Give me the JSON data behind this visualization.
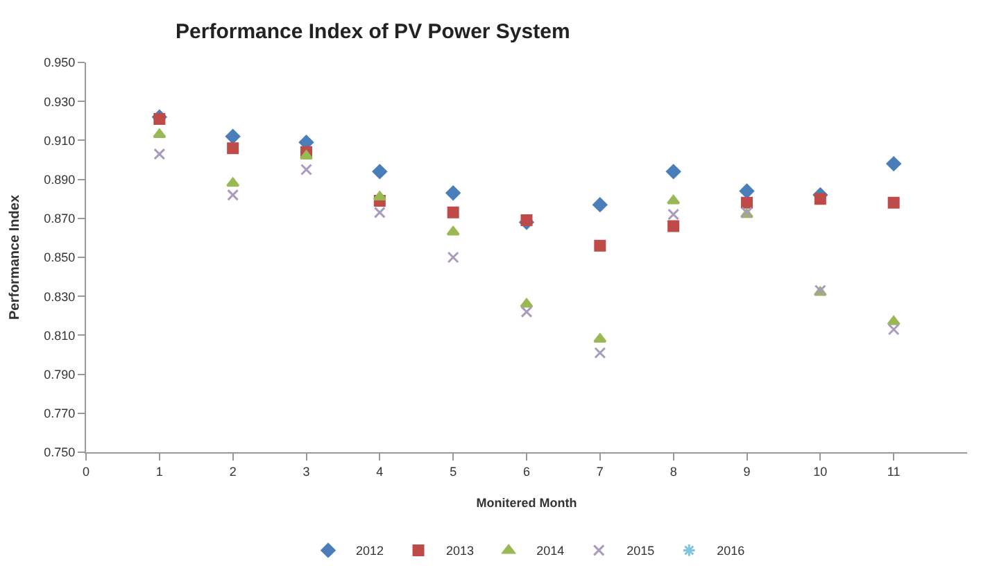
{
  "chart_data": {
    "type": "scatter",
    "title": "Performance Index of PV Power System",
    "xlabel": "Monitered Month",
    "ylabel": "Performance Index",
    "x": [
      1,
      2,
      3,
      4,
      5,
      6,
      7,
      8,
      9,
      10,
      11
    ],
    "xlim": [
      0,
      12
    ],
    "xticks": [
      0,
      1,
      2,
      3,
      4,
      5,
      6,
      7,
      8,
      9,
      10,
      11
    ],
    "ylim": [
      0.75,
      0.95
    ],
    "yticks": [
      {
        "value": 0.75,
        "label": "0.750"
      },
      {
        "value": 0.77,
        "label": "0.770"
      },
      {
        "value": 0.79,
        "label": "0.790"
      },
      {
        "value": 0.81,
        "label": "0.810"
      },
      {
        "value": 0.83,
        "label": "0.830"
      },
      {
        "value": 0.85,
        "label": "0.850"
      },
      {
        "value": 0.87,
        "label": "0.870"
      },
      {
        "value": 0.89,
        "label": "0.890"
      },
      {
        "value": 0.91,
        "label": "0.910"
      },
      {
        "value": 0.93,
        "label": "0.930"
      },
      {
        "value": 0.95,
        "label": "0.950"
      }
    ],
    "legend": "bottom",
    "series": [
      {
        "name": "2012",
        "color": "#4a7ebb",
        "marker": "diamond",
        "values": [
          0.922,
          0.912,
          0.909,
          0.894,
          0.883,
          0.868,
          0.877,
          0.894,
          0.884,
          0.882,
          0.898
        ]
      },
      {
        "name": "2013",
        "color": "#be4b48",
        "marker": "square",
        "values": [
          0.921,
          0.906,
          0.904,
          0.879,
          0.873,
          0.869,
          0.856,
          0.866,
          0.878,
          0.88,
          0.878
        ]
      },
      {
        "name": "2014",
        "color": "#98b954",
        "marker": "triangle",
        "values": [
          0.913,
          0.888,
          0.902,
          0.881,
          0.863,
          0.826,
          0.808,
          0.879,
          0.872,
          0.832,
          0.817
        ]
      },
      {
        "name": "2015",
        "color": "#a99bbd",
        "marker": "cross",
        "values": [
          0.903,
          0.882,
          0.895,
          0.873,
          0.85,
          0.822,
          0.801,
          0.872,
          0.873,
          0.833,
          0.813
        ]
      },
      {
        "name": "2016",
        "color": "#7fc5e0",
        "marker": "star",
        "values": [
          null,
          null,
          null,
          null,
          null,
          null,
          null,
          null,
          null,
          null,
          null
        ]
      }
    ]
  }
}
